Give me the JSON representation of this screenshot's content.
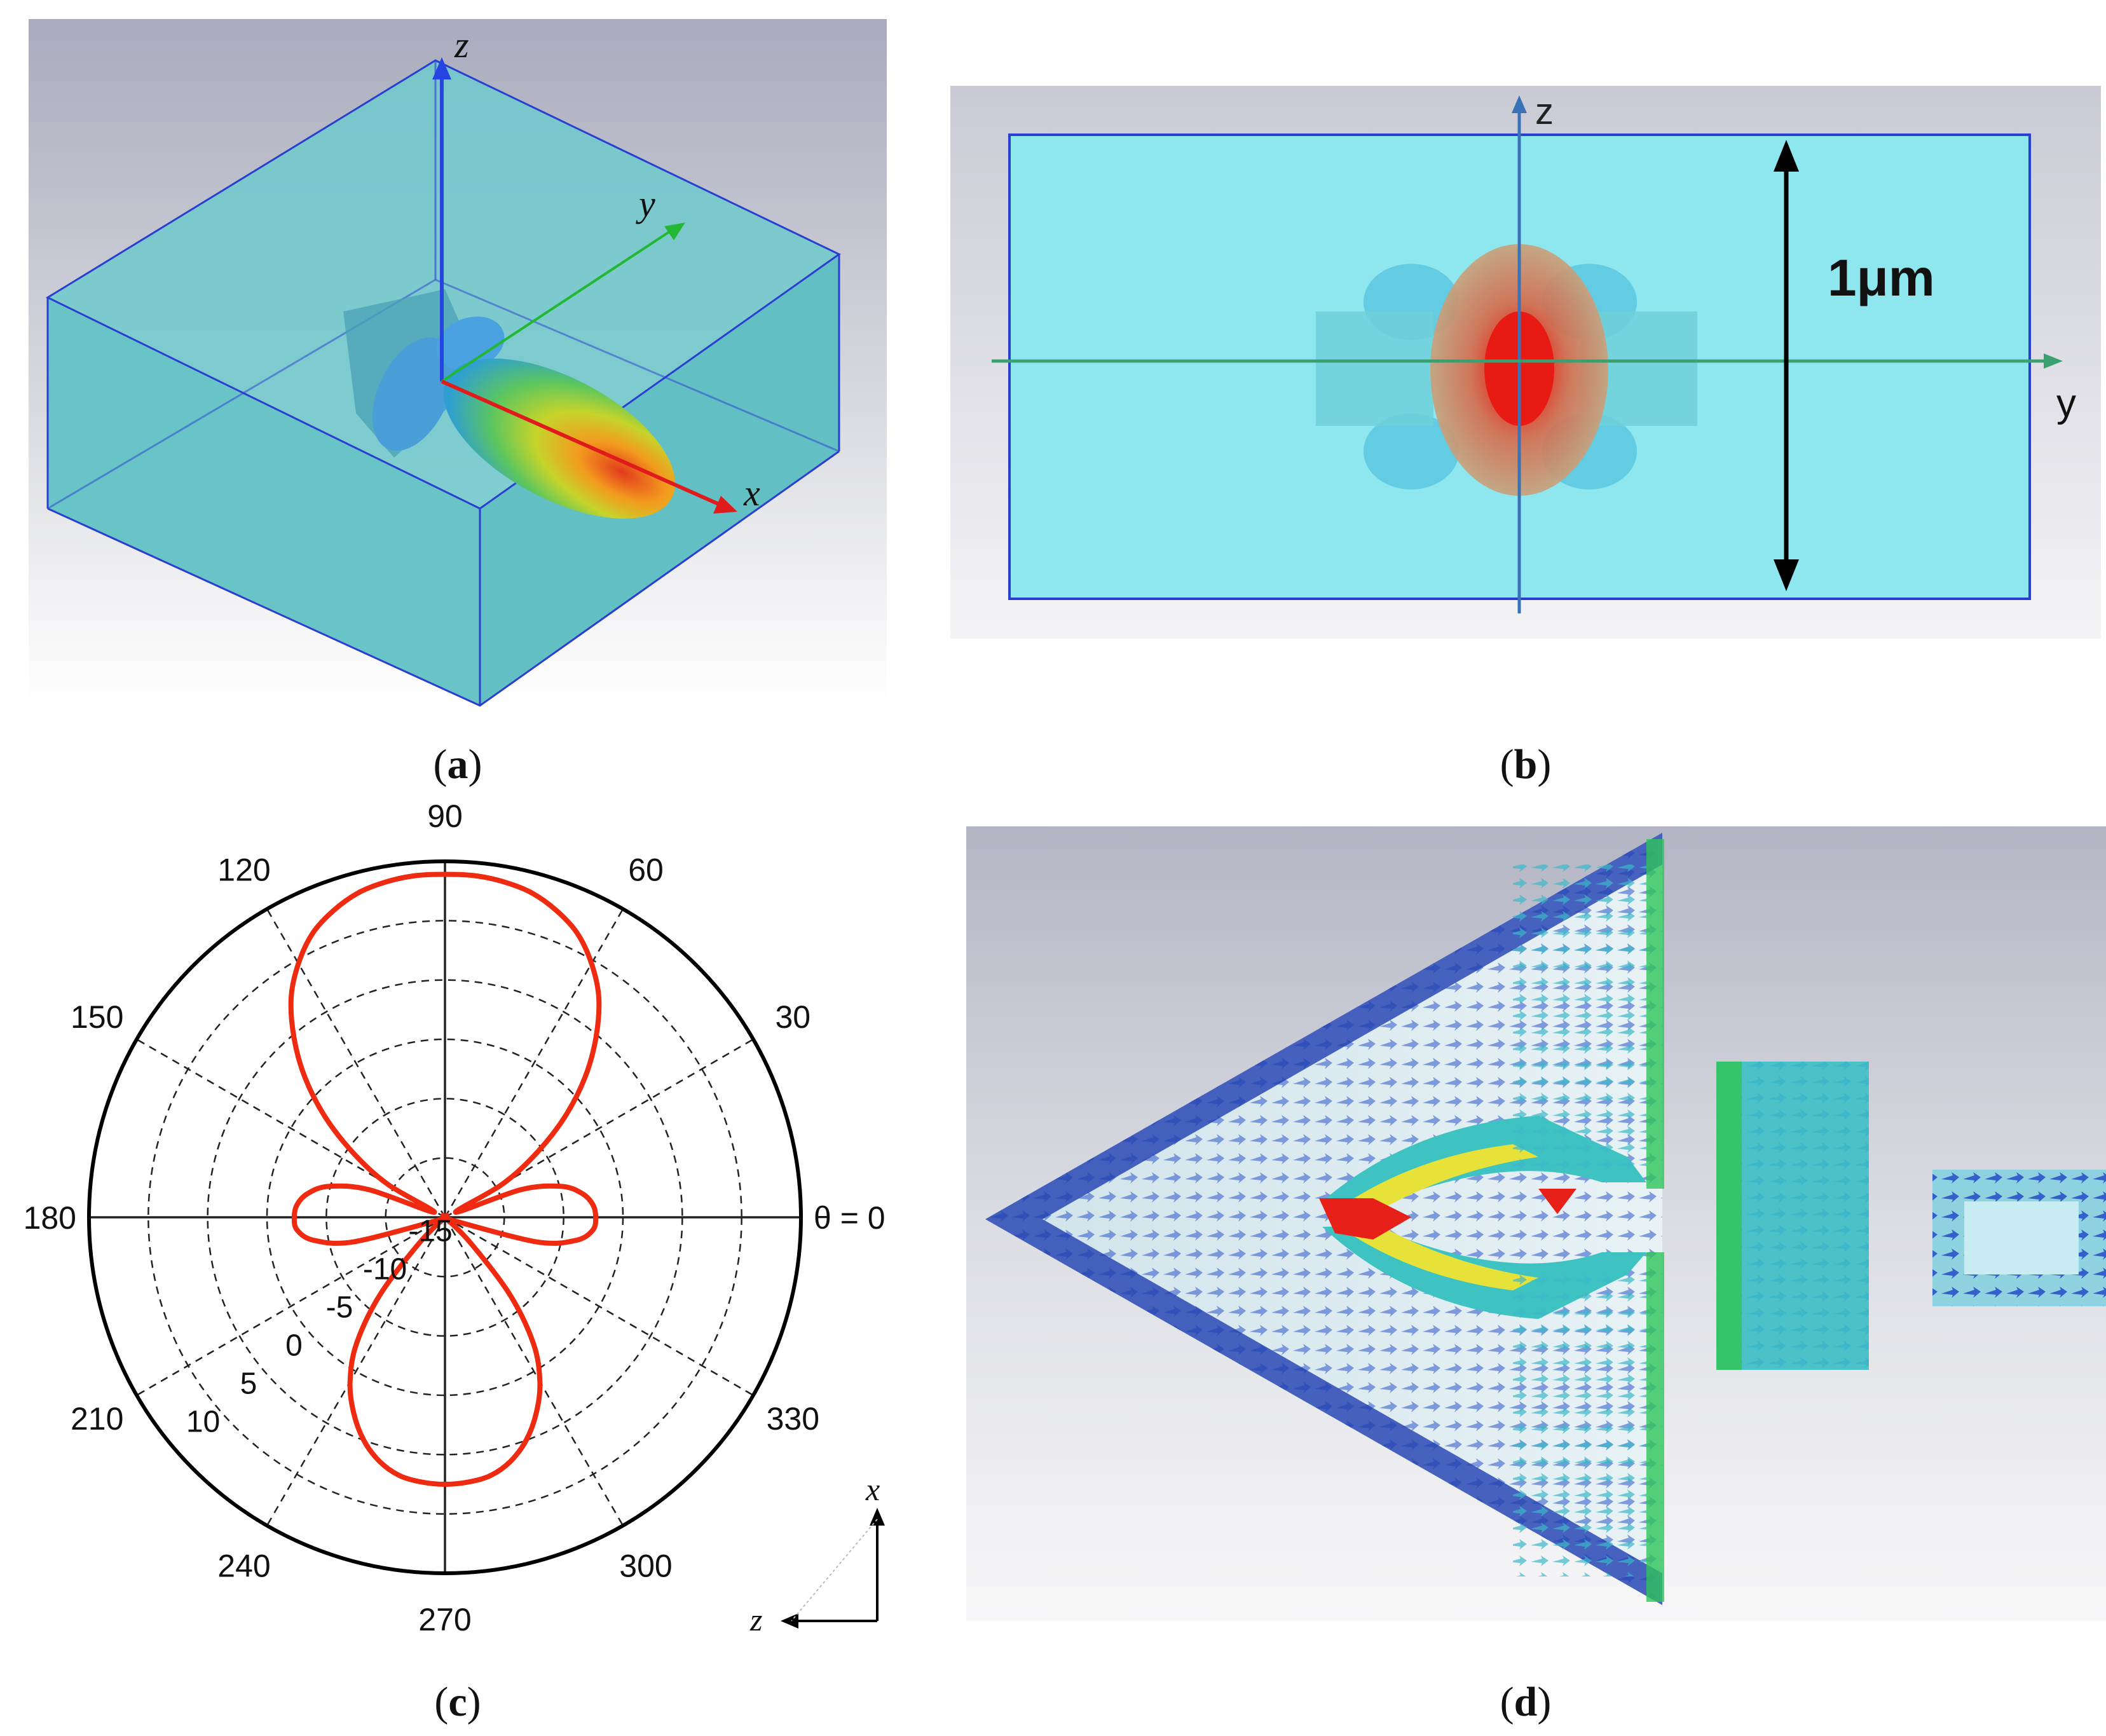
{
  "panels": {
    "a": {
      "caption_letter": "a",
      "axes": {
        "z": "z",
        "y": "y",
        "x": "x"
      }
    },
    "b": {
      "caption_letter": "b",
      "axes": {
        "z": "z",
        "y": "y"
      },
      "scale_label": "1μm"
    },
    "c": {
      "caption_letter": "c",
      "corner_axes": {
        "x": "x",
        "z": "z"
      }
    },
    "d": {
      "caption_letter": "d"
    }
  },
  "colors": {
    "water": "#7fe0e6",
    "box_edge": "#2a3fd0",
    "x_axis": "#e01b1b",
    "y_axis": "#22b833",
    "z_axis": "#2544e0",
    "polar_curve": "#ee2a10"
  },
  "chart_data": {
    "type": "polar-line",
    "angle_labels": [
      "90",
      "60",
      "30",
      "θ = 0",
      "330",
      "300",
      "270",
      "240",
      "210",
      "180",
      "150",
      "120"
    ],
    "angle_ticks_deg": [
      90,
      60,
      30,
      0,
      330,
      300,
      270,
      240,
      210,
      180,
      150,
      120
    ],
    "radial_labels": [
      "-15",
      "-10",
      "-5",
      "0",
      "5",
      "10"
    ],
    "radial_ticks": [
      -15,
      -10,
      -5,
      0,
      5,
      10
    ],
    "rlim": [
      -15,
      15
    ],
    "grid": true,
    "series": [
      {
        "theta_deg": [
          0,
          5,
          10,
          15,
          20,
          25,
          30,
          35,
          40,
          45,
          50,
          55,
          60,
          65,
          70,
          75,
          80,
          85,
          90,
          95,
          100,
          105,
          110,
          115,
          120,
          125,
          130,
          135,
          140,
          145,
          150,
          155,
          160,
          165,
          170,
          175,
          180,
          185,
          190,
          195,
          200,
          205,
          210,
          215,
          220,
          225,
          230,
          235,
          240,
          245,
          250,
          255,
          260,
          265,
          270,
          275,
          280,
          285,
          290,
          295,
          300,
          305,
          310,
          315,
          320,
          325,
          330,
          335,
          340,
          345,
          350,
          355
        ],
        "r": [
          -2.3,
          -2.5,
          -3.3,
          -4.9,
          -8.2,
          -14,
          -9.4,
          -5.6,
          -1.8,
          1.7,
          4.8,
          7.6,
          9.7,
          11.4,
          12.5,
          13.3,
          13.7,
          13.9,
          13.9,
          13.9,
          13.7,
          13.3,
          12.5,
          11.4,
          9.7,
          7.6,
          4.8,
          1.7,
          -1.8,
          -5.6,
          -9.4,
          -14,
          -8.2,
          -4.9,
          -3.3,
          -2.5,
          -2.3,
          -2.5,
          -3.8,
          -7,
          -14,
          -15,
          -15,
          -15,
          -15,
          -12,
          -6.5,
          -2,
          1,
          3.2,
          5,
          6.3,
          7.1,
          7.4,
          7.5,
          7.4,
          7.1,
          6.3,
          5,
          3.2,
          1,
          -2,
          -6.5,
          -12,
          -15,
          -15,
          -15,
          -15,
          -14,
          -7,
          -3.8,
          -2.5
        ]
      }
    ]
  }
}
